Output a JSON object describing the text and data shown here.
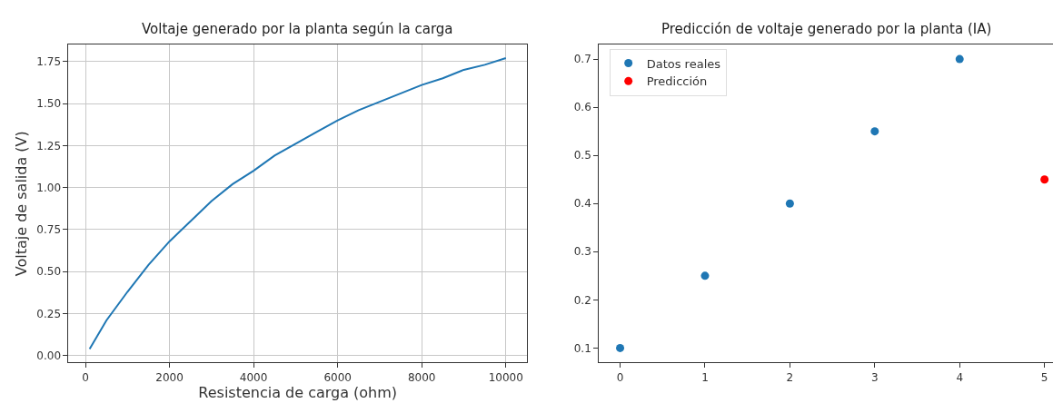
{
  "chart_data": [
    {
      "type": "line",
      "title": "Voltaje generado por la planta según la carga",
      "xlabel": "Resistencia de carga (ohm)",
      "ylabel": "Voltaje de salida (V)",
      "x": [
        100,
        500,
        1000,
        1500,
        2000,
        2500,
        3000,
        3500,
        4000,
        4500,
        5000,
        5500,
        6000,
        6500,
        7000,
        7500,
        8000,
        8500,
        9000,
        9500,
        10000
      ],
      "series": [
        {
          "color": "#1f77b4",
          "values": [
            0.04,
            0.21,
            0.38,
            0.54,
            0.68,
            0.8,
            0.92,
            1.02,
            1.1,
            1.19,
            1.26,
            1.33,
            1.4,
            1.46,
            1.51,
            1.56,
            1.61,
            1.65,
            1.7,
            1.73,
            1.77
          ]
        }
      ],
      "xlim": [
        -400,
        10500
      ],
      "ylim": [
        -0.04,
        1.85
      ],
      "xticks": [
        0,
        2000,
        4000,
        6000,
        8000,
        10000
      ],
      "yticks": [
        {
          "value": 0,
          "label": "0.00"
        },
        {
          "value": 0.25,
          "label": "0.25"
        },
        {
          "value": 0.5,
          "label": "0.50"
        },
        {
          "value": 0.75,
          "label": "0.75"
        },
        {
          "value": 1,
          "label": "1.00"
        },
        {
          "value": 1.25,
          "label": "1.25"
        },
        {
          "value": 1.5,
          "label": "1.50"
        },
        {
          "value": 1.75,
          "label": "1.75"
        }
      ],
      "grid": true,
      "legend": false,
      "line_style": "solid",
      "marker": "none"
    },
    {
      "type": "scatter",
      "title": "Predicción de voltaje generado por la planta (IA)",
      "series": [
        {
          "name": "Datos reales",
          "color": "#1f77b4",
          "x": [
            0,
            1,
            2,
            3,
            4
          ],
          "values": [
            0.1,
            0.25,
            0.4,
            0.55,
            0.7
          ]
        },
        {
          "name": "Predicción",
          "color": "#ff0000",
          "x": [
            5
          ],
          "values": [
            0.45
          ]
        }
      ],
      "xlim": [
        -0.25,
        5.1
      ],
      "ylim": [
        0.07,
        0.73
      ],
      "xticks": [
        0,
        1,
        2,
        3,
        4,
        5
      ],
      "yticks": [
        0.1,
        0.2,
        0.3,
        0.4,
        0.5,
        0.6,
        0.7
      ],
      "grid": false,
      "legend": "top left",
      "marker": "circle"
    }
  ]
}
